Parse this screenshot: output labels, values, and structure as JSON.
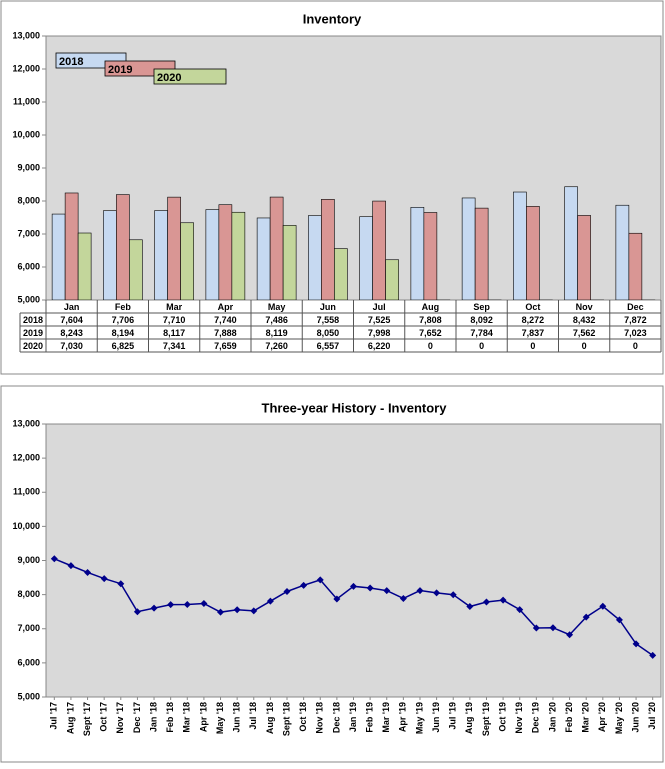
{
  "chart_data": [
    {
      "type": "bar",
      "title": "Inventory",
      "categories": [
        "Jan",
        "Feb",
        "Mar",
        "Apr",
        "May",
        "Jun",
        "Jul",
        "Aug",
        "Sep",
        "Oct",
        "Nov",
        "Dec"
      ],
      "series": [
        {
          "name": "2018",
          "color": "#c6d9f1",
          "values": [
            7604,
            7706,
            7710,
            7740,
            7486,
            7558,
            7525,
            7808,
            8092,
            8272,
            8432,
            7872
          ],
          "value_labels": [
            "7,604",
            "7,706",
            "7,710",
            "7,740",
            "7,486",
            "7,558",
            "7,525",
            "7,808",
            "8,092",
            "8,272",
            "8,432",
            "7,872"
          ]
        },
        {
          "name": "2019",
          "color": "#d99694",
          "values": [
            8243,
            8194,
            8117,
            7888,
            8119,
            8050,
            7998,
            7652,
            7784,
            7837,
            7562,
            7023
          ],
          "value_labels": [
            "8,243",
            "8,194",
            "8,117",
            "7,888",
            "8,119",
            "8,050",
            "7,998",
            "7,652",
            "7,784",
            "7,837",
            "7,562",
            "7,023"
          ]
        },
        {
          "name": "2020",
          "color": "#c3d69b",
          "values": [
            7030,
            6825,
            7341,
            7659,
            7260,
            6557,
            6220,
            0,
            0,
            0,
            0,
            0
          ],
          "value_labels": [
            "7,030",
            "6,825",
            "7,341",
            "7,659",
            "7,260",
            "6,557",
            "6,220",
            "0",
            "0",
            "0",
            "0",
            "0"
          ]
        }
      ],
      "ylim": [
        5000,
        13000
      ],
      "yticks": [
        {
          "value": 5000,
          "label": "5,000"
        },
        {
          "value": 6000,
          "label": "6,000"
        },
        {
          "value": 7000,
          "label": "7,000"
        },
        {
          "value": 8000,
          "label": "8,000"
        },
        {
          "value": 9000,
          "label": "9,000"
        },
        {
          "value": 10000,
          "label": "10,000"
        },
        {
          "value": 11000,
          "label": "11,000"
        },
        {
          "value": 12000,
          "label": "12,000"
        },
        {
          "value": 13000,
          "label": "13,000"
        }
      ],
      "legend": "upper left"
    },
    {
      "type": "line",
      "title": "Three-year History - Inventory",
      "categories": [
        "Jul '17",
        "Aug '17",
        "Sept '17",
        "Oct '17",
        "Nov '17",
        "Dec '17",
        "Jan '18",
        "Feb '18",
        "Mar '18",
        "Apr '18",
        "May '18",
        "Jun '18",
        "Jul '18",
        "Aug '18",
        "Sept '18",
        "Oct '18",
        "Nov '18",
        "Dec '18",
        "Jan '19",
        "Feb '19",
        "Mar '19",
        "Apr '19",
        "May '19",
        "Jun '19",
        "Jul '19",
        "Aug '19",
        "Sept '19",
        "Oct '19",
        "Nov '19",
        "Dec '19",
        "Jan '20",
        "Feb '20",
        "Mar '20",
        "Apr '20",
        "May '20",
        "Jun '20",
        "Jul '20"
      ],
      "color": "#00008b",
      "values": [
        9050,
        8850,
        8650,
        8470,
        8320,
        7500,
        7604,
        7706,
        7710,
        7740,
        7486,
        7558,
        7525,
        7808,
        8092,
        8272,
        8432,
        7872,
        8243,
        8194,
        8117,
        7888,
        8119,
        8050,
        7998,
        7652,
        7784,
        7837,
        7562,
        7023,
        7030,
        6825,
        7341,
        7659,
        7260,
        6557,
        6220
      ],
      "ylim": [
        5000,
        13000
      ],
      "yticks": [
        {
          "value": 5000,
          "label": "5,000"
        },
        {
          "value": 6000,
          "label": "6,000"
        },
        {
          "value": 7000,
          "label": "7,000"
        },
        {
          "value": 8000,
          "label": "8,000"
        },
        {
          "value": 9000,
          "label": "9,000"
        },
        {
          "value": 10000,
          "label": "10,000"
        },
        {
          "value": 11000,
          "label": "11,000"
        },
        {
          "value": 12000,
          "label": "12,000"
        },
        {
          "value": 13000,
          "label": "13,000"
        }
      ]
    }
  ]
}
